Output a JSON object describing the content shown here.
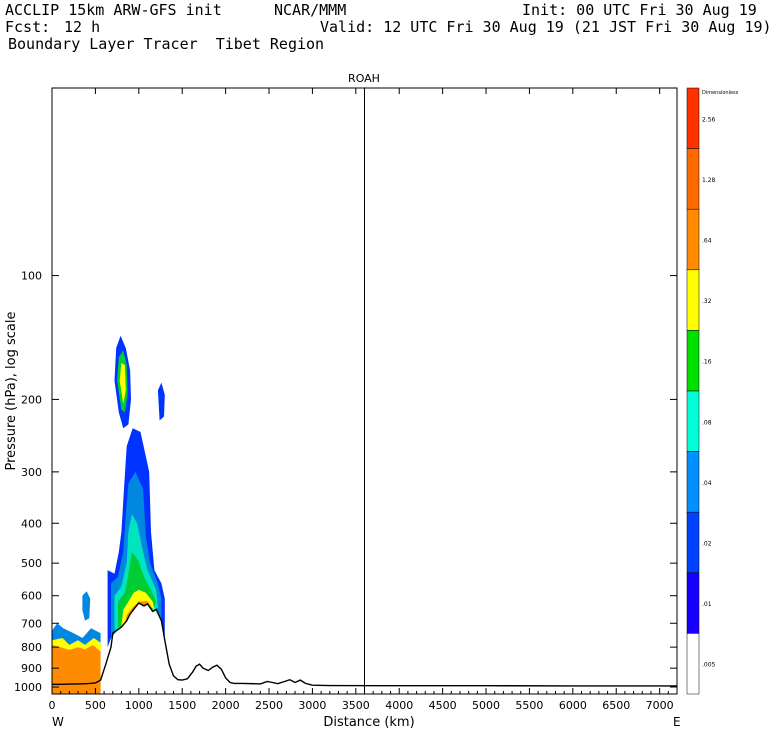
{
  "header": {
    "model": "ACCLIP 15km ARW-GFS init",
    "org": "NCAR/MMM",
    "init": "Init: 00 UTC Fri 30 Aug 19",
    "fcst_label": "Fcst:",
    "fcst_value": "12 h",
    "valid": "Valid: 12 UTC Fri 30 Aug 19 (21 JST Fri 30 Aug 19)",
    "product": "Boundary Layer Tracer  Tibet Region"
  },
  "chart_data": {
    "type": "cross-section",
    "title": "ROAH",
    "xlabel": "Distance (km)",
    "ylabel": "Pressure (hPa), log scale",
    "xlim": [
      0,
      7200
    ],
    "ylim": [
      1040,
      35
    ],
    "x_ticks": [
      0,
      500,
      1000,
      1500,
      2000,
      2500,
      3000,
      3500,
      4000,
      4500,
      5000,
      5500,
      6000,
      6500,
      7000
    ],
    "y_ticks": [
      1000,
      900,
      800,
      700,
      600,
      500,
      400,
      300,
      200,
      100
    ],
    "x_start_label": "W",
    "x_end_label": "E",
    "marker_x": 3600,
    "colors": {
      "background": "#ffffff",
      "terrain": "#000000",
      "tracer_orange": "#ff8c00",
      "tracer_yellow": "#ffff00",
      "tracer_green": "#00cc33",
      "tracer_cyan": "#00e5c0",
      "tracer_blue": "#0088e0",
      "tracer_darkblue": "#0033ff"
    },
    "colorbar": {
      "unit": "Dimensionless",
      "labels": [
        ".005",
        ".01",
        ".02",
        ".04",
        ".08",
        ".16",
        ".32",
        ".64",
        "1.28",
        "2.56"
      ],
      "colors": [
        "#ffffff",
        "#1800ff",
        "#0042ff",
        "#0090ff",
        "#00ffd8",
        "#00e000",
        "#ffff00",
        "#ff8c00",
        "#ff6a00",
        "#ff3200"
      ]
    },
    "terrain_surface_hPa": [
      [
        0,
        985
      ],
      [
        100,
        985
      ],
      [
        200,
        984
      ],
      [
        300,
        983
      ],
      [
        400,
        982
      ],
      [
        500,
        978
      ],
      [
        560,
        962
      ],
      [
        620,
        880
      ],
      [
        680,
        800
      ],
      [
        700,
        740
      ],
      [
        760,
        725
      ],
      [
        800,
        715
      ],
      [
        860,
        690
      ],
      [
        900,
        665
      ],
      [
        960,
        640
      ],
      [
        1000,
        625
      ],
      [
        1060,
        635
      ],
      [
        1100,
        628
      ],
      [
        1160,
        655
      ],
      [
        1200,
        648
      ],
      [
        1260,
        690
      ],
      [
        1300,
        770
      ],
      [
        1350,
        880
      ],
      [
        1400,
        940
      ],
      [
        1450,
        960
      ],
      [
        1500,
        962
      ],
      [
        1560,
        955
      ],
      [
        1620,
        920
      ],
      [
        1660,
        890
      ],
      [
        1700,
        880
      ],
      [
        1740,
        900
      ],
      [
        1800,
        912
      ],
      [
        1850,
        895
      ],
      [
        1900,
        885
      ],
      [
        1950,
        905
      ],
      [
        2000,
        950
      ],
      [
        2050,
        975
      ],
      [
        2100,
        980
      ],
      [
        2200,
        980
      ],
      [
        2400,
        983
      ],
      [
        2480,
        970
      ],
      [
        2540,
        975
      ],
      [
        2600,
        982
      ],
      [
        2680,
        970
      ],
      [
        2740,
        960
      ],
      [
        2800,
        975
      ],
      [
        2860,
        962
      ],
      [
        2920,
        980
      ],
      [
        3000,
        990
      ],
      [
        3200,
        992
      ],
      [
        4000,
        993
      ],
      [
        5000,
        993
      ],
      [
        6000,
        994
      ],
      [
        7200,
        994
      ]
    ]
  }
}
